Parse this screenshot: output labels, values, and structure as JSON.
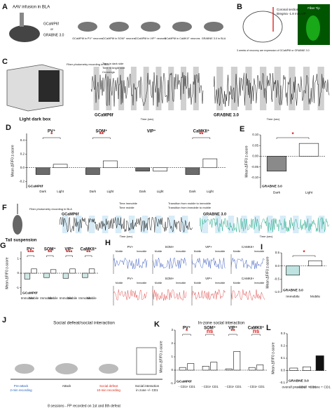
{
  "panels": {
    "A": {
      "label": "A",
      "title": "AAV infusion in BLA",
      "construct_1": "GCaMP6f",
      "or": "or",
      "construct_2": "GRABNE 3.0",
      "steps": [
        "GCaMP6f in PV⁺ neurons",
        "GCaMP6f in SOM⁺ neurons",
        "GCaMP6f in VIP⁺ neurons",
        "GCaMP6f in CaMKII⁺ neurons",
        "GRABNE 3.0 in BLA"
      ]
    },
    "B": {
      "label": "B",
      "section": "Coronal section",
      "bregma": "Bregma -1.8 mm A/P",
      "fiber": "Fiber Tip",
      "note": "3 weeks of recovery are expression of GCaMP6f or GRABNE 3.0"
    },
    "C": {
      "label": "C",
      "box": "Light dark box",
      "recording": "Fiber photometry recording in BLA",
      "legend": [
        "Time in dark side",
        "Time in bright side",
        "Crossings"
      ],
      "trace_1": "GCaMP6f",
      "trace_2": "GRABNE 3.0",
      "x_label": "Time (sec)"
    },
    "F": {
      "label": "F",
      "test": "Tail suspension",
      "recording": "Fiber photometry recording in BLA",
      "legend": [
        "Time immobile",
        "Time mobile",
        "Transition from mobile to immobile",
        "Transition from immobile to mobile"
      ],
      "trace_1": "GCaMP6f",
      "trace_2": "GRABNE 3.0",
      "x_label": "Time (sec)"
    },
    "H": {
      "label": "H",
      "groups": [
        "PV+",
        "SOM+",
        "VIP+",
        "CAMKII+"
      ],
      "states": [
        "Mobile",
        "Immobile"
      ]
    },
    "J": {
      "label": "J",
      "title": "Social defeat/social interaction",
      "steps": [
        "Pre-attack",
        "2-min recording",
        "Attack",
        "Social defeat",
        "10-min recording",
        "Social interaction",
        "in zone +/- CD1"
      ],
      "note": "8 sessions - FP recorded on 1st and 8th defeat"
    }
  },
  "chart_data": [
    {
      "type": "bar",
      "panel": "D",
      "y_label": "Mean ΔF/F0 z-score",
      "legend_label": "GCaMP6f",
      "categories": [
        "PV⁺",
        "SOM⁺",
        "VIP⁺",
        "CaMKII⁺"
      ],
      "series": [
        {
          "name": "Dark",
          "color": "#6b6b6b",
          "values": [
            -0.1,
            -0.1,
            -0.05,
            -0.1
          ]
        },
        {
          "name": "Light",
          "color": "#ffffff",
          "values": [
            0.05,
            0.1,
            -0.05,
            0.13
          ]
        }
      ],
      "significance": [
        "*",
        "**",
        null,
        "**"
      ],
      "ylim": [
        -0.3,
        0.5
      ],
      "yticks": [
        {
          "value": -0.2,
          "label": "-0.2"
        },
        {
          "value": 0,
          "label": "0.0"
        },
        {
          "value": 0.2,
          "label": "0.2"
        },
        {
          "value": 0.4,
          "label": "0.4"
        }
      ]
    },
    {
      "type": "bar",
      "panel": "E",
      "y_label": "Mean ΔF/F0 z-score",
      "legend_label": "GRABNE 3.0",
      "categories": [
        "Dark",
        "Light"
      ],
      "values": [
        -0.07,
        0.06
      ],
      "colors": [
        "#8a8a8a",
        "#ffffff"
      ],
      "significance": "*",
      "ylim": [
        -0.15,
        0.1
      ],
      "yticks": [
        {
          "value": -0.1,
          "label": "-0.10"
        },
        {
          "value": -0.05,
          "label": "-0.05"
        },
        {
          "value": 0,
          "label": "0.00"
        },
        {
          "value": 0.05,
          "label": "0.05"
        },
        {
          "value": 0.1,
          "label": "0.10"
        }
      ]
    },
    {
      "type": "bar",
      "panel": "G",
      "y_label": "Mean ΔF/F0 z-score",
      "legend_label": "GCaMP6f",
      "categories": [
        "PV⁺",
        "SOM⁺",
        "VIP⁺",
        "CaMKII⁺"
      ],
      "series": [
        {
          "name": "Immobile",
          "color": "#cfe8e6",
          "values": [
            -0.4,
            -0.3,
            -0.35,
            -0.3
          ]
        },
        {
          "name": "Mobile",
          "color": "#ffffff",
          "values": [
            0.3,
            0.25,
            0.3,
            0.3
          ]
        }
      ],
      "significance": [
        "***",
        "**",
        "***",
        "**"
      ],
      "ylim": [
        -1.5,
        1.5
      ],
      "yticks": [
        -1,
        0,
        1
      ]
    },
    {
      "type": "bar",
      "panel": "I",
      "y_label": "Mean ΔF/F0 z-score",
      "legend_label": "GRABNE 3.0",
      "categories": [
        "Immobile",
        "Mobile"
      ],
      "values": [
        -0.35,
        0.2
      ],
      "colors": [
        "#bfe3e0",
        "#ffffff"
      ],
      "significance": "*",
      "ylim": [
        -1.0,
        0.5
      ],
      "yticks": [
        {
          "value": -1,
          "label": "-1.0"
        },
        {
          "value": -0.5,
          "label": "-0.5"
        },
        {
          "value": 0,
          "label": "0.0"
        },
        {
          "value": 0.5,
          "label": "0.5"
        }
      ]
    },
    {
      "type": "bar",
      "panel": "K",
      "title": "In-zone social interaction",
      "y_label": "Mean ΔF/F0 z-score",
      "legend_label": "GCaMP6f",
      "categories": [
        "PV⁺",
        "SOM⁺",
        "VIP⁺",
        "CaMKII⁺"
      ],
      "series": [
        {
          "name": "- CD1",
          "color": "#ffffff",
          "values": [
            0.2,
            0.3,
            0.1,
            0.2
          ]
        },
        {
          "name": "+ CD1",
          "color": "#ffffff",
          "values": [
            0.5,
            0.6,
            1.4,
            0.4
          ]
        }
      ],
      "significance": [
        "*",
        "ns",
        "**",
        "ns"
      ],
      "ylim": [
        -1,
        3
      ],
      "yticks": [
        -1,
        0,
        1,
        2,
        3
      ]
    },
    {
      "type": "bar",
      "panel": "L",
      "y_label": "Mean ΔF/F0 z-score",
      "legend_label": "GRABNE 3.0",
      "categories": [
        "overall pre-CD1",
        "overall +CD1",
        "in zone + CD1"
      ],
      "values": [
        0.02,
        0.03,
        0.12
      ],
      "colors": [
        "#ffffff",
        "#ffffff",
        "#111111"
      ],
      "ylim": [
        -0.1,
        0.3
      ],
      "yticks": [
        {
          "value": -0.1,
          "label": "-0.1"
        },
        {
          "value": 0,
          "label": "0.0"
        },
        {
          "value": 0.1,
          "label": "0.1"
        },
        {
          "value": 0.2,
          "label": "0.2"
        },
        {
          "value": 0.3,
          "label": "0.3"
        }
      ]
    }
  ]
}
